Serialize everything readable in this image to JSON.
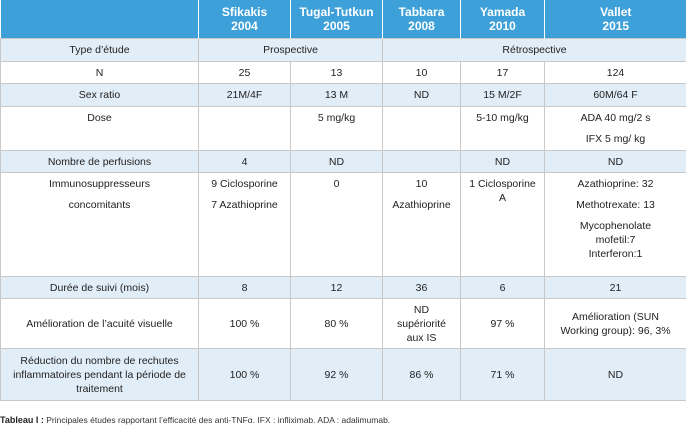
{
  "headers": [
    {
      "name": "Sfikakis",
      "year": "2004"
    },
    {
      "name": "Tugal-Tutkun",
      "year": "2005"
    },
    {
      "name": "Tabbara",
      "year": "2008"
    },
    {
      "name": "Yamada",
      "year": "2010"
    },
    {
      "name": "Vallet",
      "year": "2015"
    }
  ],
  "rows": {
    "type": {
      "label": "Type d’étude",
      "prospective": "Prospective",
      "retrospective": "Rétrospective"
    },
    "n": {
      "label": "N",
      "values": [
        "25",
        "13",
        "10",
        "17",
        "124"
      ]
    },
    "sex": {
      "label": "Sex ratio",
      "values": [
        "21M/4F",
        "13 M",
        "ND",
        "15 M/2F",
        "60M/64 F"
      ]
    },
    "dose": {
      "label": "Dose",
      "values": [
        "",
        "5 mg/kg",
        "",
        "5-10 mg/kg",
        ""
      ],
      "vallet": [
        "ADA 40 mg/2 s",
        "IFX 5 mg/ kg"
      ]
    },
    "perf": {
      "label": "Nombre de perfusions",
      "values": [
        "4",
        "ND",
        "",
        "ND",
        "ND"
      ]
    },
    "immuno": {
      "label1": "Immunosuppresseurs",
      "label2": "concomitants",
      "sfikakis": [
        "9 Ciclosporine",
        "7 Azathioprine"
      ],
      "tugal": "0",
      "tabbara": [
        "10",
        "Azathioprine"
      ],
      "yamada": [
        "1 Ciclosporine",
        "A"
      ],
      "vallet": [
        "Azathioprine: 32",
        "Methotrexate: 13",
        "Mycophenolate",
        "mofetil:7",
        "Interferon:1"
      ]
    },
    "suivi": {
      "label": "Durée  de suivi (mois)",
      "values": [
        "8",
        "12",
        "36",
        "6",
        "21"
      ]
    },
    "acuite": {
      "label": "Amélioration de l’acuité visuelle",
      "values": [
        "100 %",
        "80 %",
        "",
        "97 %",
        ""
      ],
      "tabbara": [
        "ND",
        "supériorité",
        "aux IS"
      ],
      "vallet": [
        "Amélioration (SUN",
        "Working group): 96, 3%"
      ]
    },
    "rechutes": {
      "label": [
        "Réduction du nombre de rechutes",
        "inflammatoires pendant la période de",
        "traitement"
      ],
      "values": [
        "100 %",
        "92 %",
        "86 %",
        "71 %",
        "ND"
      ]
    }
  },
  "caption": {
    "bold": "Tableau I :",
    "text": " Principales études rapportant l’efficacité des anti-TNFα. IFX : infliximab. ADA : adalimumab."
  }
}
